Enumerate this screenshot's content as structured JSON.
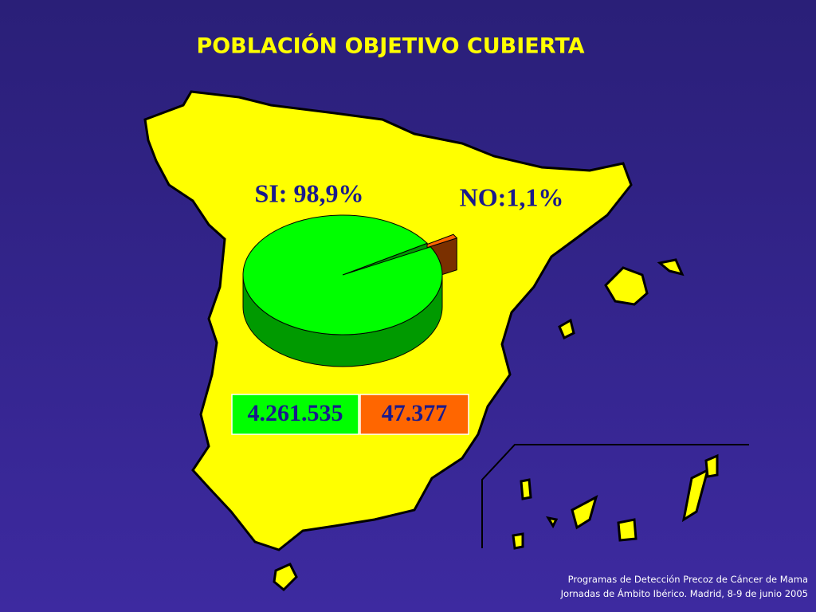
{
  "chart_data": {
    "type": "pie",
    "title": "POBLACIÓN OBJETIVO CUBIERTA",
    "values": [
      98.9,
      1.1
    ],
    "value_labels": [
      "SI: 98,9%",
      "NO:1,1%"
    ],
    "colors": [
      "#00ff00",
      "#ff6600"
    ],
    "side_colors": [
      "#009a00",
      "#7a3000"
    ],
    "counts": [
      4261535,
      47377
    ],
    "count_labels": [
      "4.261.535",
      "47.377"
    ],
    "footer": [
      "Programas de Detección Precoz de Cáncer de Mama",
      "Jornadas de Ámbito Ibérico. Madrid, 8-9 de junio 2005"
    ]
  }
}
